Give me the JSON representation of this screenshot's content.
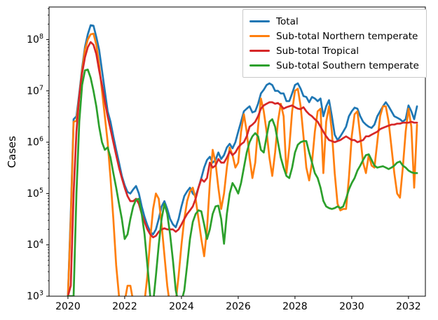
{
  "figure": {
    "background": "#ffffff"
  },
  "chart_data": {
    "type": "line",
    "title": "",
    "xlabel": "",
    "ylabel": "Cases",
    "yscale": "log",
    "grid": false,
    "legend_position": "upper right",
    "xlim": [
      2019.335,
      2032.595
    ],
    "ylim": [
      1000,
      430000000
    ],
    "x_ticks": [
      2020,
      2022,
      2024,
      2026,
      2028,
      2030,
      2032
    ],
    "y_tick_exponents": [
      3,
      4,
      5,
      6,
      7,
      8
    ],
    "x": [
      2020.0,
      2020.1,
      2020.2,
      2020.3,
      2020.4,
      2020.5,
      2020.6,
      2020.7,
      2020.8,
      2020.9,
      2021.0,
      2021.1,
      2021.2,
      2021.3,
      2021.4,
      2021.5,
      2021.6,
      2021.7,
      2021.8,
      2021.9,
      2022.0,
      2022.1,
      2022.2,
      2022.3,
      2022.4,
      2022.5,
      2022.6,
      2022.7,
      2022.8,
      2022.9,
      2023.0,
      2023.1,
      2023.2,
      2023.3,
      2023.4,
      2023.5,
      2023.6,
      2023.7,
      2023.8,
      2023.9,
      2024.0,
      2024.1,
      2024.2,
      2024.3,
      2024.4,
      2024.5,
      2024.6,
      2024.7,
      2024.8,
      2024.9,
      2025.0,
      2025.1,
      2025.2,
      2025.3,
      2025.4,
      2025.5,
      2025.6,
      2025.7,
      2025.8,
      2025.9,
      2026.0,
      2026.1,
      2026.2,
      2026.3,
      2026.4,
      2026.5,
      2026.6,
      2026.7,
      2026.8,
      2026.9,
      2027.0,
      2027.1,
      2027.2,
      2027.3,
      2027.4,
      2027.5,
      2027.6,
      2027.7,
      2027.8,
      2027.9,
      2028.0,
      2028.1,
      2028.2,
      2028.3,
      2028.4,
      2028.5,
      2028.6,
      2028.7,
      2028.8,
      2028.9,
      2029.0,
      2029.1,
      2029.2,
      2029.3,
      2029.4,
      2029.5,
      2029.6,
      2029.7,
      2029.8,
      2029.9,
      2030.0,
      2030.1,
      2030.2,
      2030.3,
      2030.4,
      2030.5,
      2030.6,
      2030.7,
      2030.8,
      2030.9,
      2031.0,
      2031.1,
      2031.2,
      2031.3,
      2031.4,
      2031.5,
      2031.6,
      2031.7,
      2031.8,
      2031.9,
      2032.0,
      2032.1,
      2032.2,
      2032.3
    ],
    "series": [
      {
        "name": "Total",
        "color": "#1f77b4",
        "values": [
          1000,
          40000.0,
          2800000.0,
          3200000.0,
          8900000.0,
          28000000.0,
          71000000.0,
          126000000.0,
          190000000.0,
          186000000.0,
          112000000.0,
          63000000.0,
          25000000.0,
          10000000.0,
          4000000.0,
          2500000.0,
          1300000.0,
          710000.0,
          400000.0,
          220000.0,
          145000.0,
          107000.0,
          100000.0,
          120000.0,
          140000.0,
          100000.0,
          56000.0,
          35000.0,
          24000.0,
          18000.0,
          16000.0,
          20000.0,
          32000.0,
          56000.0,
          71000.0,
          50000.0,
          32000.0,
          25000.0,
          22000.0,
          32000.0,
          56000.0,
          89000.0,
          110000.0,
          130000.0,
          100000.0,
          89000.0,
          130000.0,
          200000.0,
          320000.0,
          450000.0,
          520000.0,
          400000.0,
          450000.0,
          630000.0,
          470000.0,
          560000.0,
          790000.0,
          930000.0,
          760000.0,
          1000000.0,
          1600000.0,
          2500000.0,
          4000000.0,
          4500000.0,
          5000000.0,
          3800000.0,
          4000000.0,
          5600000.0,
          8900000.0,
          10500000.0,
          13000000.0,
          14000000.0,
          13000000.0,
          10000000.0,
          10000000.0,
          8900000.0,
          8900000.0,
          6300000.0,
          6300000.0,
          8900000.0,
          13000000.0,
          14000000.0,
          11000000.0,
          7900000.0,
          7600000.0,
          6000000.0,
          7600000.0,
          7100000.0,
          6300000.0,
          7100000.0,
          3200000.0,
          5000000.0,
          6600000.0,
          3200000.0,
          1400000.0,
          1100000.0,
          1300000.0,
          1600000.0,
          2000000.0,
          3200000.0,
          4000000.0,
          4700000.0,
          4500000.0,
          3200000.0,
          2500000.0,
          2200000.0,
          2000000.0,
          1900000.0,
          2200000.0,
          3200000.0,
          4000000.0,
          5000000.0,
          6000000.0,
          5000000.0,
          4000000.0,
          3200000.0,
          3000000.0,
          2800000.0,
          2500000.0,
          2800000.0,
          5200000.0,
          4000000.0,
          2800000.0,
          5000000.0
        ]
      },
      {
        "name": "Sub-total Northern temperate",
        "color": "#ff7f0e",
        "values": [
          1000,
          32000.0,
          2500000.0,
          2600000.0,
          7900000.0,
          25000000.0,
          63000000.0,
          100000000.0,
          126000000.0,
          130000000.0,
          79000000.0,
          32000000.0,
          10000000.0,
          3200000.0,
          1000000.0,
          200000.0,
          32000.0,
          4000,
          1000,
          630,
          790,
          1600,
          1600,
          790,
          500,
          400,
          500,
          790,
          2500,
          13000.0,
          50000.0,
          100000.0,
          79000.0,
          25000.0,
          6300,
          1600,
          630,
          500,
          790,
          2500,
          10000.0,
          32000.0,
          71000.0,
          110000.0,
          130000.0,
          79000.0,
          32000.0,
          13000.0,
          6000,
          20000.0,
          160000.0,
          710000.0,
          400000.0,
          130000.0,
          50000.0,
          100000.0,
          320000.0,
          790000.0,
          560000.0,
          320000.0,
          400000.0,
          1600000.0,
          3500000.0,
          1600000.0,
          500000.0,
          200000.0,
          400000.0,
          2000000.0,
          7100000.0,
          4000000.0,
          1600000.0,
          500000.0,
          220000.0,
          630000.0,
          2500000.0,
          5600000.0,
          3200000.0,
          250000.0,
          790000.0,
          4000000.0,
          10000000.0,
          11000000.0,
          5000000.0,
          1300000.0,
          320000.0,
          180000.0,
          400000.0,
          1600000.0,
          4000000.0,
          4500000.0,
          250000.0,
          2500000.0,
          5000000.0,
          1600000.0,
          250000.0,
          63000.0,
          47000.0,
          50000.0,
          50000.0,
          200000.0,
          1300000.0,
          3500000.0,
          4000000.0,
          1300000.0,
          400000.0,
          250000.0,
          560000.0,
          350000.0,
          320000.0,
          1000000.0,
          3200000.0,
          5000000.0,
          5000000.0,
          2500000.0,
          790000.0,
          250000.0,
          100000.0,
          83000.0,
          320000.0,
          1600000.0,
          4500000.0,
          2000000.0,
          130000.0,
          2200000.0
        ]
      },
      {
        "name": "Sub-total Tropical",
        "color": "#d62728",
        "values": [
          1000,
          1600,
          100000.0,
          1600000.0,
          7900000.0,
          22000000.0,
          45000000.0,
          71000000.0,
          89000000.0,
          79000000.0,
          52000000.0,
          25000000.0,
          13000000.0,
          6300000.0,
          3200000.0,
          1800000.0,
          1000000.0,
          560000.0,
          320000.0,
          200000.0,
          130000.0,
          89000.0,
          71000.0,
          71000.0,
          79000.0,
          63000.0,
          40000.0,
          28000.0,
          20000.0,
          16000.0,
          14000.0,
          15000.0,
          18000.0,
          20000.0,
          21000.0,
          20000.0,
          20000.0,
          20000.0,
          18000.0,
          20000.0,
          25000.0,
          32000.0,
          40000.0,
          47000.0,
          56000.0,
          79000.0,
          130000.0,
          190000.0,
          170000.0,
          200000.0,
          400000.0,
          320000.0,
          350000.0,
          470000.0,
          400000.0,
          400000.0,
          500000.0,
          660000.0,
          560000.0,
          630000.0,
          790000.0,
          910000.0,
          1000000.0,
          1300000.0,
          2000000.0,
          2200000.0,
          2500000.0,
          3200000.0,
          4500000.0,
          5200000.0,
          5600000.0,
          6000000.0,
          6000000.0,
          5600000.0,
          5800000.0,
          5200000.0,
          4500000.0,
          4800000.0,
          5000000.0,
          5200000.0,
          4800000.0,
          4500000.0,
          4400000.0,
          4800000.0,
          4000000.0,
          3500000.0,
          3200000.0,
          2800000.0,
          2500000.0,
          2000000.0,
          1600000.0,
          1300000.0,
          1100000.0,
          1050000.0,
          1000000.0,
          1050000.0,
          1100000.0,
          1200000.0,
          1300000.0,
          1200000.0,
          1100000.0,
          1100000.0,
          1000000.0,
          1050000.0,
          1100000.0,
          1300000.0,
          1300000.0,
          1400000.0,
          1500000.0,
          1600000.0,
          1800000.0,
          1900000.0,
          2000000.0,
          2100000.0,
          2200000.0,
          2200000.0,
          2300000.0,
          2300000.0,
          2400000.0,
          2400000.0,
          2400000.0,
          2500000.0,
          2400000.0,
          2400000.0
        ]
      },
      {
        "name": "Sub-total Southern temperate",
        "color": "#2ca02c",
        "values": [
          1000,
          1000,
          1000,
          100000.0,
          2500000.0,
          13000000.0,
          25000000.0,
          26000000.0,
          18000000.0,
          10000000.0,
          5000000.0,
          2000000.0,
          1000000.0,
          710000.0,
          790000.0,
          500000.0,
          250000.0,
          130000.0,
          63000.0,
          32000.0,
          13000.0,
          16000.0,
          32000.0,
          56000.0,
          76000.0,
          79000.0,
          40000.0,
          16000.0,
          4000,
          1000,
          710,
          2500,
          10000.0,
          32000.0,
          63000.0,
          40000.0,
          16000.0,
          5000,
          1300,
          710,
          790,
          1300,
          4000,
          13000.0,
          28000.0,
          40000.0,
          47000.0,
          45000.0,
          25000.0,
          13000.0,
          20000.0,
          40000.0,
          56000.0,
          58000.0,
          32000.0,
          10500.0,
          40000.0,
          100000.0,
          160000.0,
          130000.0,
          100000.0,
          160000.0,
          320000.0,
          630000.0,
          1000000.0,
          1300000.0,
          1500000.0,
          1300000.0,
          710000.0,
          630000.0,
          1300000.0,
          2500000.0,
          2800000.0,
          2000000.0,
          1000000.0,
          500000.0,
          320000.0,
          220000.0,
          200000.0,
          320000.0,
          630000.0,
          890000.0,
          1000000.0,
          1050000.0,
          1050000.0,
          630000.0,
          400000.0,
          250000.0,
          200000.0,
          130000.0,
          72000.0,
          56000.0,
          52000.0,
          50000.0,
          52000.0,
          56000.0,
          52000.0,
          56000.0,
          79000.0,
          120000.0,
          160000.0,
          200000.0,
          280000.0,
          350000.0,
          450000.0,
          560000.0,
          580000.0,
          450000.0,
          350000.0,
          320000.0,
          330000.0,
          340000.0,
          320000.0,
          300000.0,
          320000.0,
          350000.0,
          400000.0,
          420000.0,
          350000.0,
          320000.0,
          280000.0,
          260000.0,
          250000.0,
          250000.0
        ]
      }
    ]
  }
}
